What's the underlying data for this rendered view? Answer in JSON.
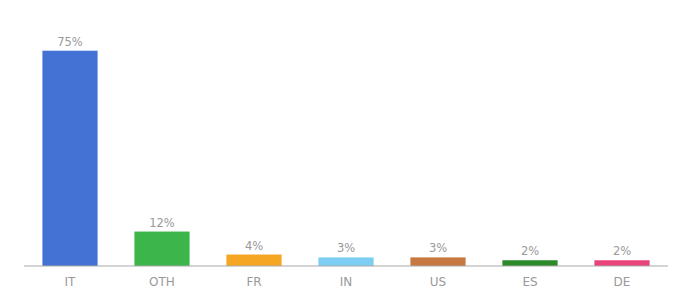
{
  "chart_data": {
    "type": "bar",
    "categories": [
      "IT",
      "OTH",
      "FR",
      "IN",
      "US",
      "ES",
      "DE"
    ],
    "values": [
      75,
      12,
      4,
      3,
      3,
      2,
      2
    ],
    "value_labels": [
      "75%",
      "12%",
      "4%",
      "3%",
      "3%",
      "2%",
      "2%"
    ],
    "colors": [
      "#4472d4",
      "#3cb54a",
      "#f5a623",
      "#7ecef4",
      "#c87941",
      "#2a8a2a",
      "#e8437a"
    ],
    "ylim": [
      0,
      85
    ],
    "grid": false,
    "data_labels": true,
    "tick_labels": "x"
  }
}
